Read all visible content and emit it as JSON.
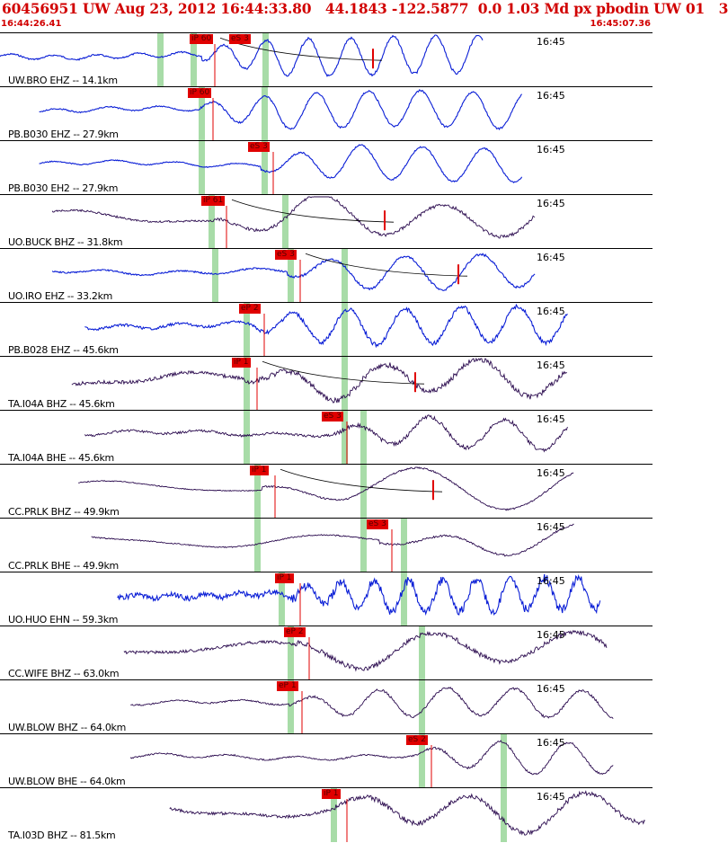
{
  "header": {
    "title": "60456951 UW Aug 23, 2012 16:44:33.80   44.1843 -122.5877  0.0 1.03 Md px pbodin UW 01   3",
    "start_time": "16:44:26.41",
    "end_time": "16:45:07.36"
  },
  "colors": {
    "header_red": "#d10000",
    "trace_blue": "#0a1ed6",
    "trace_dark": "#2a0a4e",
    "pick_red": "#e00000",
    "window_green": "#a8dca8",
    "fit_curve": "#000000"
  },
  "panels": [
    {
      "label": "UW.BRO EHZ -- 14.1km",
      "time": "16:45",
      "color": "blue",
      "picks": [
        {
          "text": "iP 60"
        },
        {
          "text": "eS 3"
        }
      ],
      "noise": 0.15,
      "amp": 0.95,
      "freq": 1.6,
      "start": 0.0,
      "end": 0.74
    },
    {
      "label": "PB.B030 EHZ -- 27.9km",
      "time": "16:45",
      "color": "blue",
      "picks": [
        {
          "text": "iP 60"
        }
      ],
      "noise": 0.12,
      "amp": 0.9,
      "freq": 1.3,
      "start": 0.06,
      "end": 0.8
    },
    {
      "label": "PB.B030 EH2 -- 27.9km",
      "time": "16:45",
      "color": "blue",
      "picks": [
        {
          "text": "eS 3"
        }
      ],
      "noise": 0.1,
      "amp": 0.85,
      "freq": 1.1,
      "start": 0.06,
      "end": 0.8
    },
    {
      "label": "UO.BUCK BHZ -- 31.8km",
      "time": "16:45",
      "color": "dark",
      "picks": [
        {
          "text": "iP 61"
        }
      ],
      "noise": 0.2,
      "amp": 0.9,
      "freq": 0.55,
      "start": 0.08,
      "end": 0.82
    },
    {
      "label": "UO.IRO EHZ -- 33.2km",
      "time": "16:45",
      "color": "blue",
      "picks": [
        {
          "text": "eS 3"
        }
      ],
      "noise": 0.15,
      "amp": 0.85,
      "freq": 0.9,
      "start": 0.08,
      "end": 0.82
    },
    {
      "label": "PB.B028 EHZ -- 45.6km",
      "time": "16:45",
      "color": "blue",
      "picks": [
        {
          "text": "eP 2"
        }
      ],
      "noise": 0.25,
      "amp": 0.9,
      "freq": 1.2,
      "start": 0.13,
      "end": 0.87
    },
    {
      "label": "TA.I04A BHZ -- 45.6km",
      "time": "16:45",
      "color": "dark",
      "picks": [
        {
          "text": "iP 1"
        }
      ],
      "noise": 0.35,
      "amp": 0.8,
      "freq": 0.7,
      "start": 0.11,
      "end": 0.87
    },
    {
      "label": "TA.I04A BHE -- 45.6km",
      "time": "16:45",
      "color": "dark",
      "picks": [
        {
          "text": "eS 3"
        }
      ],
      "noise": 0.25,
      "amp": 0.75,
      "freq": 0.9,
      "start": 0.13,
      "end": 0.87
    },
    {
      "label": "CC.PRLK BHZ -- 49.9km",
      "time": "16:45",
      "color": "dark",
      "picks": [
        {
          "text": "iP 1"
        }
      ],
      "noise": 0.1,
      "amp": 0.85,
      "freq": 0.4,
      "start": 0.12,
      "end": 0.88
    },
    {
      "label": "CC.PRLK BHE -- 49.9km",
      "time": "16:45",
      "color": "dark",
      "picks": [
        {
          "text": "eS 3"
        }
      ],
      "noise": 0.12,
      "amp": 0.6,
      "freq": 0.5,
      "start": 0.14,
      "end": 0.88
    },
    {
      "label": "UO.HUO EHN -- 59.3km",
      "time": "16:45",
      "color": "blue",
      "picks": [
        {
          "text": "iP 1"
        }
      ],
      "noise": 0.55,
      "amp": 0.8,
      "freq": 2.0,
      "start": 0.18,
      "end": 0.92
    },
    {
      "label": "CC.WIFE BHZ -- 63.0km",
      "time": "16:45",
      "color": "dark",
      "picks": [
        {
          "text": "eP 2"
        }
      ],
      "noise": 0.3,
      "amp": 0.9,
      "freq": 0.45,
      "start": 0.19,
      "end": 0.93
    },
    {
      "label": "UW.BLOW BHZ -- 64.0km",
      "time": "16:45",
      "color": "dark",
      "picks": [
        {
          "text": "eP 1"
        }
      ],
      "noise": 0.15,
      "amp": 0.7,
      "freq": 1.0,
      "start": 0.2,
      "end": 0.94
    },
    {
      "label": "UW.BLOW BHE -- 64.0km",
      "time": "16:45",
      "color": "dark",
      "picks": [
        {
          "text": "eS 2"
        }
      ],
      "noise": 0.15,
      "amp": 0.8,
      "freq": 1.0,
      "start": 0.2,
      "end": 0.94
    },
    {
      "label": "TA.I03D BHZ -- 81.5km",
      "time": "16:45",
      "color": "dark",
      "picks": [
        {
          "text": "iP 1"
        }
      ],
      "noise": 0.3,
      "amp": 0.85,
      "freq": 0.6,
      "start": 0.26,
      "end": 0.99
    }
  ]
}
